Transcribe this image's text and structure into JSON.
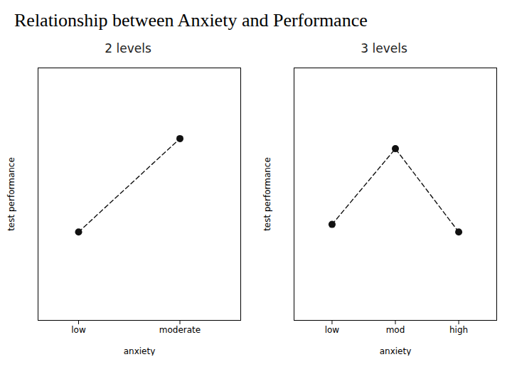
{
  "title": "Relationship between Anxiety and Performance",
  "chart_data": [
    {
      "type": "line",
      "title": "2 levels",
      "x": [
        1,
        2
      ],
      "values": [
        0.35,
        0.72
      ],
      "xlim": [
        0.6,
        2.6
      ],
      "xticks": [
        {
          "value": 1,
          "label": "low"
        },
        {
          "value": 2,
          "label": "moderate"
        }
      ],
      "ylim": [
        0.0,
        1.0
      ],
      "yticks": [],
      "xlabel": "anxiety",
      "ylabel": "test performance",
      "tick_labels": "x",
      "grid": false,
      "color": "#111111",
      "marker": "circle",
      "line_style": "dashed"
    },
    {
      "type": "line",
      "title": "3 levels",
      "x": [
        1,
        2,
        3
      ],
      "values": [
        0.38,
        0.68,
        0.35
      ],
      "xlim": [
        0.4,
        3.6
      ],
      "xticks": [
        {
          "value": 1,
          "label": "low"
        },
        {
          "value": 2,
          "label": "mod"
        },
        {
          "value": 3,
          "label": "high"
        }
      ],
      "ylim": [
        0.0,
        1.0
      ],
      "yticks": [],
      "xlabel": "anxiety",
      "ylabel": "test performance",
      "tick_labels": "x",
      "grid": false,
      "color": "#111111",
      "marker": "circle",
      "line_style": "dashed"
    }
  ]
}
